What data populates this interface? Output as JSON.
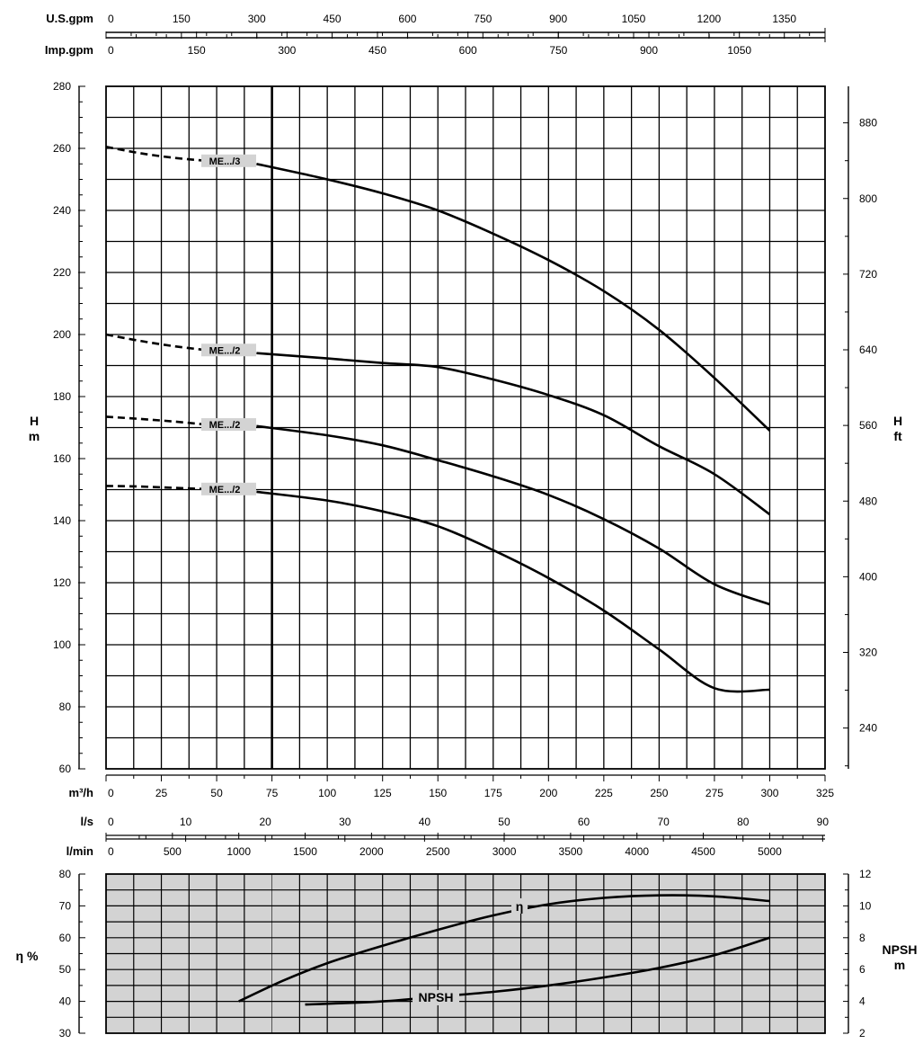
{
  "chart_data": [
    {
      "type": "line",
      "x_unit": "m³/h",
      "xlim": [
        0,
        325
      ],
      "x_ticks": [
        0,
        25,
        50,
        75,
        100,
        125,
        150,
        175,
        200,
        225,
        250,
        275,
        300,
        325
      ],
      "ylabel": "H\nm",
      "ylim": [
        60,
        280
      ],
      "y_ticks": [
        60,
        80,
        100,
        120,
        140,
        160,
        180,
        200,
        220,
        240,
        260,
        280
      ],
      "y2label": "H\nft",
      "y2_ticks": [
        240,
        320,
        400,
        480,
        560,
        640,
        720,
        800,
        880
      ],
      "grid": true,
      "reference_line_x": 75,
      "series": [
        {
          "name": "ME.../3",
          "dashed": [
            [
              0,
              260.5
            ],
            [
              15,
              258.5
            ],
            [
              30,
              257
            ],
            [
              45,
              256
            ]
          ],
          "solid": [
            [
              68,
              255
            ],
            [
              100,
              250
            ],
            [
              125,
              245.5
            ],
            [
              150,
              240
            ],
            [
              175,
              232.5
            ],
            [
              200,
              224
            ],
            [
              225,
              214
            ],
            [
              250,
              201.5
            ],
            [
              275,
              186
            ],
            [
              300,
              169
            ]
          ]
        },
        {
          "name": "ME.../2",
          "dashed": [
            [
              0,
              200
            ],
            [
              15,
              198
            ],
            [
              30,
              196.3
            ],
            [
              45,
              195
            ]
          ],
          "solid": [
            [
              68,
              194
            ],
            [
              100,
              192.3
            ],
            [
              125,
              190.8
            ],
            [
              150,
              189.5
            ],
            [
              175,
              185.5
            ],
            [
              200,
              180.5
            ],
            [
              225,
              174
            ],
            [
              250,
              164
            ],
            [
              275,
              155
            ],
            [
              300,
              142
            ]
          ]
        },
        {
          "name": "ME.../2",
          "dashed": [
            [
              0,
              173.5
            ],
            [
              15,
              172.8
            ],
            [
              30,
              172
            ],
            [
              45,
              171
            ]
          ],
          "solid": [
            [
              68,
              170.5
            ],
            [
              100,
              167.5
            ],
            [
              125,
              164.3
            ],
            [
              150,
              159.5
            ],
            [
              175,
              154.3
            ],
            [
              200,
              148.3
            ],
            [
              225,
              140.5
            ],
            [
              250,
              131
            ],
            [
              275,
              119.5
            ],
            [
              300,
              113
            ]
          ]
        },
        {
          "name": "ME.../2",
          "dashed": [
            [
              0,
              151.2
            ],
            [
              15,
              151
            ],
            [
              30,
              150.6
            ],
            [
              45,
              150.2
            ]
          ],
          "solid": [
            [
              68,
              149.3
            ],
            [
              100,
              146.5
            ],
            [
              125,
              143
            ],
            [
              150,
              138.2
            ],
            [
              175,
              130.5
            ],
            [
              200,
              121.5
            ],
            [
              225,
              111
            ],
            [
              250,
              98.5
            ],
            [
              275,
              86
            ],
            [
              300,
              85.5
            ]
          ]
        }
      ]
    },
    {
      "type": "line",
      "xlim": [
        0,
        325
      ],
      "ylabel": "η %",
      "ylim": [
        30,
        80
      ],
      "y_ticks": [
        30,
        40,
        50,
        60,
        70,
        80
      ],
      "y2label": "NPSH\nm",
      "y2lim": [
        2,
        12
      ],
      "y2_ticks": [
        2,
        4,
        6,
        8,
        10,
        12
      ],
      "grid": true,
      "background": "#d3d3d3",
      "series": [
        {
          "name": "η",
          "axis": "left",
          "points": [
            [
              60,
              40
            ],
            [
              80,
              46.5
            ],
            [
              100,
              52
            ],
            [
              125,
              57.5
            ],
            [
              150,
              62.5
            ],
            [
              175,
              67
            ],
            [
              200,
              70.5
            ],
            [
              225,
              72.5
            ],
            [
              250,
              73.3
            ],
            [
              275,
              73
            ],
            [
              300,
              71.5
            ]
          ]
        },
        {
          "name": "NPSH",
          "axis": "right",
          "points": [
            [
              90,
              3.8
            ],
            [
              125,
              4.0
            ],
            [
              150,
              4.3
            ],
            [
              175,
              4.6
            ],
            [
              200,
              5.0
            ],
            [
              225,
              5.5
            ],
            [
              250,
              6.1
            ],
            [
              275,
              6.9
            ],
            [
              300,
              8.0
            ]
          ]
        }
      ]
    }
  ],
  "top_scales": {
    "usgpm": {
      "label": "U.S.gpm",
      "ticks": [
        "0",
        "150",
        "300",
        "450",
        "600",
        "750",
        "900",
        "1050",
        "1200",
        "1350"
      ],
      "step": 150,
      "minor_step": 50,
      "max": 1431
    },
    "impgpm": {
      "label": "Imp.gpm",
      "ticks": [
        "0",
        "150",
        "300",
        "450",
        "600",
        "750",
        "900",
        "1050"
      ],
      "step": 150,
      "minor_step": 50,
      "max": 1192
    }
  },
  "mid_scales": {
    "m3h": {
      "label": "m³/h"
    },
    "ls": {
      "label": "l/s",
      "ticks": [
        "0",
        "10",
        "20",
        "30",
        "40",
        "50",
        "60",
        "70",
        "80",
        "90"
      ],
      "step": 10,
      "minor_step": 5,
      "max": 90.3
    },
    "lmin": {
      "label": "l/min",
      "ticks": [
        "0",
        "500",
        "1000",
        "1500",
        "2000",
        "2500",
        "3000",
        "3500",
        "4000",
        "4500",
        "5000"
      ],
      "step": 500,
      "minor_step": 250,
      "max": 5417
    }
  },
  "colors": {
    "line": "#000000",
    "grid": "#000000",
    "lower_background": "#d3d3d3",
    "tag_background": "#d3d3d3"
  }
}
